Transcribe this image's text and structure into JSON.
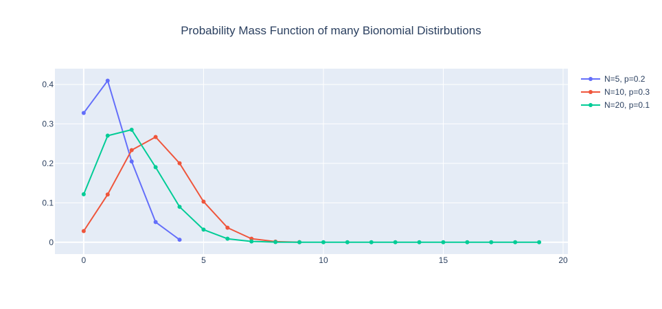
{
  "chart_data": {
    "type": "line",
    "title": "Probability Mass Function of many Bionomial Distirbutions",
    "xlabel": "",
    "ylabel": "",
    "xlim": [
      -1.2,
      20.2
    ],
    "ylim": [
      -0.03,
      0.44
    ],
    "x_ticks": [
      0,
      5,
      10,
      15,
      20
    ],
    "y_ticks": [
      0,
      0.1,
      0.2,
      0.3,
      0.4
    ],
    "x_tick_labels": [
      "0",
      "5",
      "10",
      "15",
      "20"
    ],
    "y_tick_labels": [
      "0",
      "0.1",
      "0.2",
      "0.3",
      "0.4"
    ],
    "grid": true,
    "legend_position": "top-right",
    "series": [
      {
        "name": "N=5, p=0.2",
        "color": "#636efa",
        "x": [
          0,
          1,
          2,
          3,
          4
        ],
        "y": [
          0.32768,
          0.4096,
          0.2048,
          0.0512,
          0.0064
        ]
      },
      {
        "name": "N=10, p=0.3",
        "color": "#EF553B",
        "x": [
          0,
          1,
          2,
          3,
          4,
          5,
          6,
          7,
          8,
          9
        ],
        "y": [
          0.02825,
          0.12106,
          0.23347,
          0.26683,
          0.20012,
          0.10292,
          0.03676,
          0.009,
          0.00145,
          0.00014
        ]
      },
      {
        "name": "N=20, p=0.1",
        "color": "#00cc96",
        "x": [
          0,
          1,
          2,
          3,
          4,
          5,
          6,
          7,
          8,
          9,
          10,
          11,
          12,
          13,
          14,
          15,
          16,
          17,
          18,
          19
        ],
        "y": [
          0.12158,
          0.27017,
          0.28518,
          0.19012,
          0.08978,
          0.03192,
          0.00887,
          0.00197,
          0.00036,
          5e-05,
          1e-05,
          0,
          0,
          0,
          0,
          0,
          0,
          0,
          0,
          0
        ]
      }
    ]
  }
}
